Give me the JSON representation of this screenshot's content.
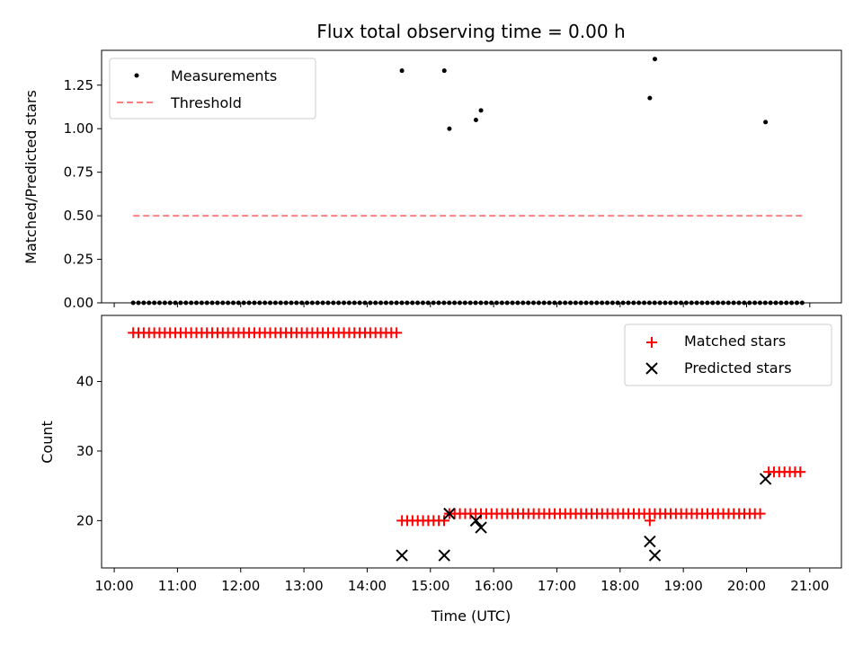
{
  "chart_data": {
    "title": "Flux total observing time = 0.00 h",
    "x_domain_hours": [
      9.8,
      21.5
    ],
    "x_ticks": [
      "10:00",
      "11:00",
      "12:00",
      "13:00",
      "14:00",
      "15:00",
      "16:00",
      "17:00",
      "18:00",
      "19:00",
      "20:00",
      "21:00"
    ],
    "x_tick_hours": [
      10,
      11,
      12,
      13,
      14,
      15,
      16,
      17,
      18,
      19,
      20,
      21
    ],
    "xlabel": "Time (UTC)",
    "panels": [
      {
        "type": "scatter",
        "ylabel": "Matched/Predicted stars",
        "ylim": [
          0,
          1.45
        ],
        "y_ticks": [
          "0.00",
          "0.25",
          "0.50",
          "0.75",
          "1.00",
          "1.25"
        ],
        "y_tick_values": [
          0,
          0.25,
          0.5,
          0.75,
          1.0,
          1.25
        ],
        "legend_position": "top-left",
        "series": [
          {
            "name": "Measurements",
            "marker": "dot",
            "color": "#000000",
            "zero_from_hour": 10.3,
            "zero_to_hour": 20.9,
            "zero_step_hours": 0.0833,
            "points": [
              {
                "x_hour": 14.55,
                "y": 1.333
              },
              {
                "x_hour": 15.22,
                "y": 1.333
              },
              {
                "x_hour": 15.3,
                "y": 1.0
              },
              {
                "x_hour": 15.72,
                "y": 1.05
              },
              {
                "x_hour": 15.8,
                "y": 1.105
              },
              {
                "x_hour": 18.47,
                "y": 1.176
              },
              {
                "x_hour": 18.55,
                "y": 1.4
              },
              {
                "x_hour": 20.3,
                "y": 1.038
              }
            ]
          },
          {
            "name": "Threshold",
            "marker": "dashed-line",
            "color": "#ff7f7f",
            "from_hour": 10.3,
            "to_hour": 20.9,
            "value": 0.5
          }
        ]
      },
      {
        "type": "scatter",
        "ylabel": "Count",
        "ylim": [
          13.2,
          49.5
        ],
        "y_ticks": [
          "20",
          "30",
          "40"
        ],
        "y_tick_values": [
          20,
          30,
          40
        ],
        "legend_position": "top-right",
        "series": [
          {
            "name": "Matched stars",
            "marker": "plus",
            "color": "#ff0000",
            "segments": [
              {
                "from_hour": 10.3,
                "to_hour": 14.5,
                "value": 47
              },
              {
                "from_hour": 14.55,
                "to_hour": 15.25,
                "value": 20
              },
              {
                "from_hour": 15.3,
                "to_hour": 20.25,
                "value": 21
              },
              {
                "from_hour": 20.35,
                "to_hour": 20.9,
                "value": 27
              }
            ],
            "extra_points": [
              {
                "x_hour": 18.47,
                "y": 20
              }
            ]
          },
          {
            "name": "Predicted stars",
            "marker": "cross",
            "color": "#000000",
            "points": [
              {
                "x_hour": 14.55,
                "y": 15
              },
              {
                "x_hour": 15.22,
                "y": 15
              },
              {
                "x_hour": 15.3,
                "y": 21
              },
              {
                "x_hour": 15.72,
                "y": 20
              },
              {
                "x_hour": 15.8,
                "y": 19
              },
              {
                "x_hour": 18.47,
                "y": 17
              },
              {
                "x_hour": 18.55,
                "y": 15
              },
              {
                "x_hour": 20.3,
                "y": 26
              }
            ]
          }
        ]
      }
    ]
  }
}
